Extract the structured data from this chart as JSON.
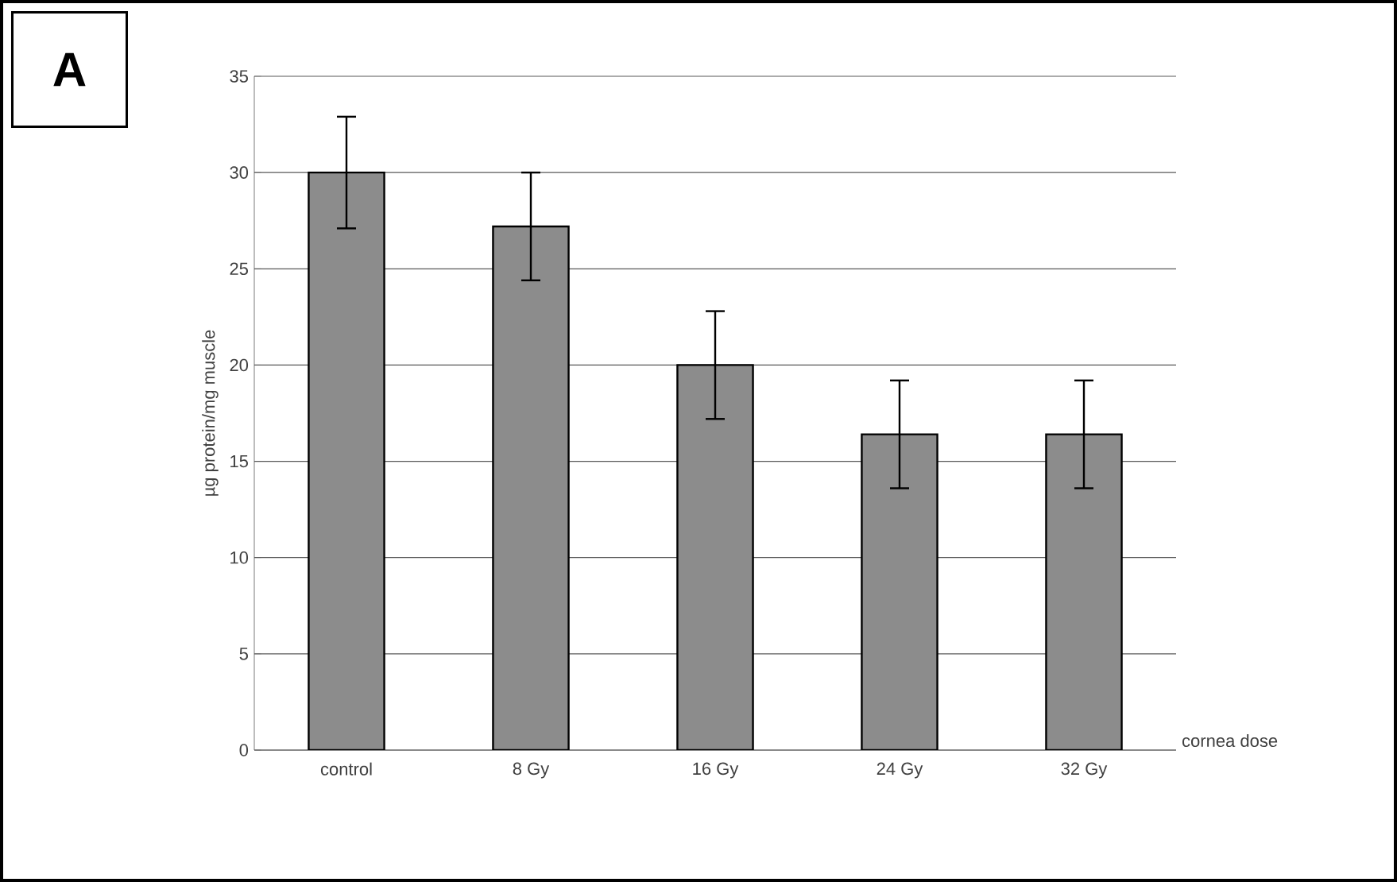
{
  "chart_data": {
    "type": "bar",
    "xlabel": "cornea dose",
    "ylabel": "µg protein/mg muscle",
    "annotations": [
      "A"
    ],
    "categories": [
      "control",
      "8 Gy",
      "16 Gy",
      "24 Gy",
      "32 Gy"
    ],
    "values": [
      30,
      27.2,
      20,
      16.4,
      16.4
    ],
    "errors": [
      2.9,
      2.8,
      2.8,
      2.8,
      2.8
    ],
    "color": "#8c8c8c",
    "ylim": [
      0,
      35
    ],
    "yticks": [
      0,
      5,
      10,
      15,
      20,
      25,
      30,
      35
    ],
    "grid": "y"
  }
}
